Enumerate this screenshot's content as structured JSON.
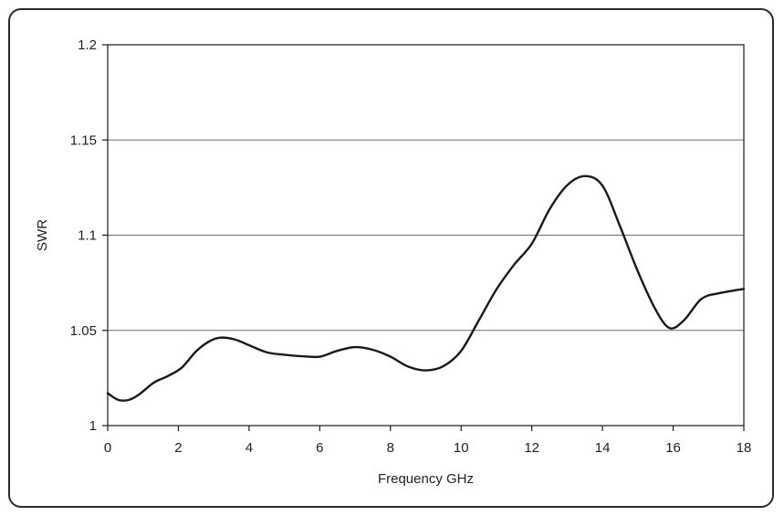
{
  "chart_data": {
    "type": "line",
    "title": "",
    "xlabel": "Frequency GHz",
    "ylabel": "SWR",
    "xlim": [
      0,
      18
    ],
    "ylim": [
      1,
      1.2
    ],
    "x_ticks": [
      0,
      2,
      4,
      6,
      8,
      10,
      12,
      14,
      16,
      18
    ],
    "y_ticks": [
      1,
      1.05,
      1.1,
      1.15,
      1.2
    ],
    "x_tick_labels": [
      "0",
      "2",
      "4",
      "6",
      "8",
      "10",
      "12",
      "14",
      "16",
      "18"
    ],
    "y_tick_labels": [
      "1",
      "1.05",
      "1.1",
      "1.15",
      "1.2"
    ],
    "grid": "horizontal",
    "line_color": "#1a1a1a",
    "series": [
      {
        "x": [
          0,
          0.3,
          0.6,
          0.9,
          1.3,
          1.7,
          2.1,
          2.5,
          2.9,
          3.2,
          3.6,
          4.0,
          4.5,
          5.0,
          5.5,
          6.0,
          6.5,
          7.0,
          7.5,
          8.0,
          8.5,
          9.0,
          9.5,
          10.0,
          10.5,
          11.0,
          11.5,
          12.0,
          12.5,
          13.0,
          13.5,
          14.0,
          14.5,
          15.0,
          15.5,
          15.9,
          16.3,
          16.8,
          17.3,
          18.0
        ],
        "y": [
          1.017,
          1.0135,
          1.0135,
          1.0165,
          1.0225,
          1.026,
          1.0305,
          1.039,
          1.0445,
          1.0462,
          1.0452,
          1.0422,
          1.0385,
          1.0372,
          1.0364,
          1.0362,
          1.0393,
          1.0412,
          1.0398,
          1.0362,
          1.031,
          1.029,
          1.0312,
          1.0392,
          1.0552,
          1.0715,
          1.0845,
          1.0955,
          1.1135,
          1.1262,
          1.131,
          1.126,
          1.1045,
          1.081,
          1.061,
          1.0512,
          1.0552,
          1.0665,
          1.0695,
          1.0718
        ]
      }
    ]
  }
}
